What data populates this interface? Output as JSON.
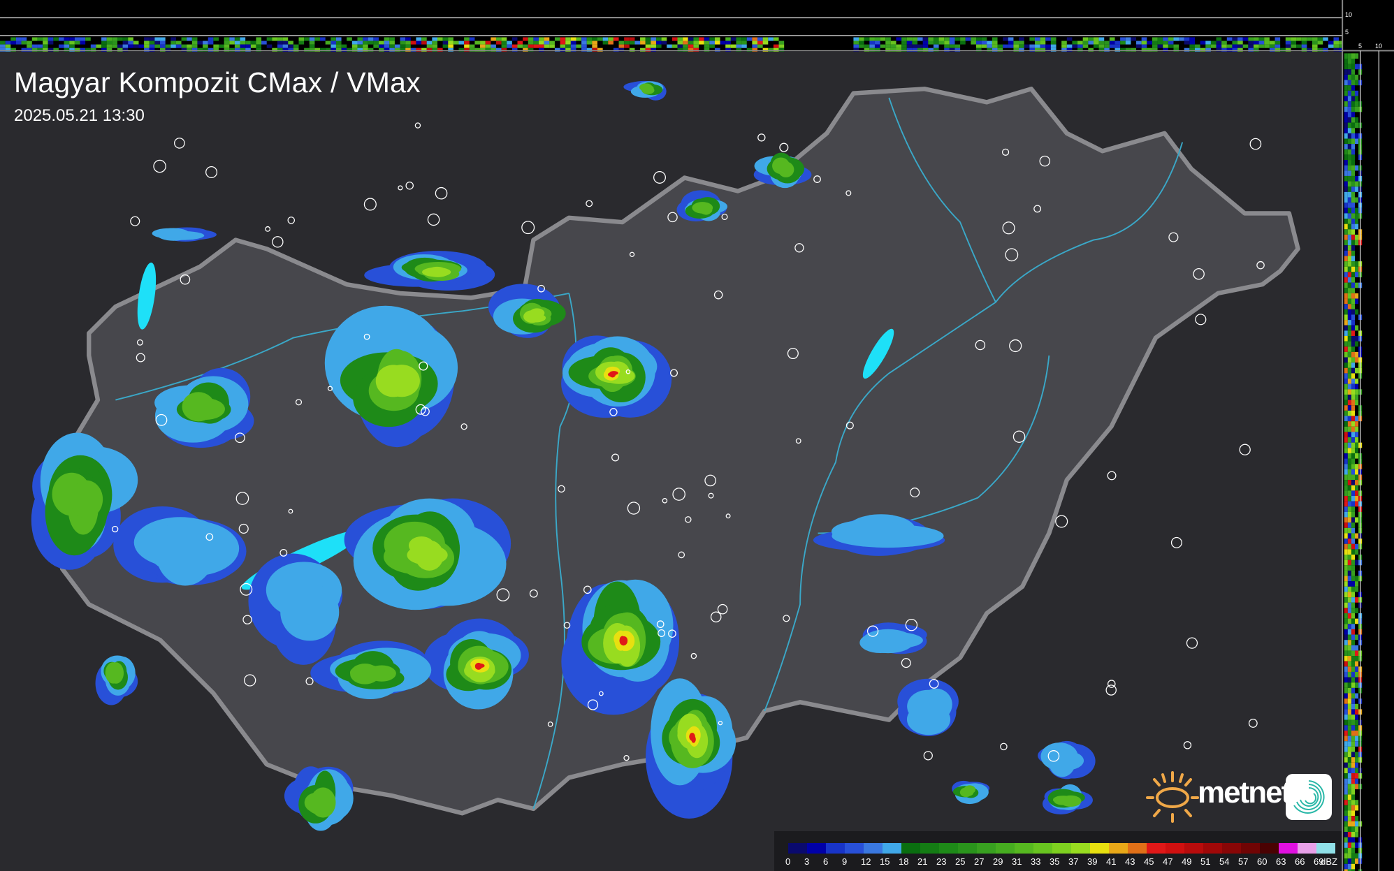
{
  "header": {
    "title": "Magyar Kompozit CMax / VMax",
    "datetime": "2025.05.21 13:30"
  },
  "profile_axes": {
    "top_ticks": [
      "10",
      "5"
    ],
    "side_ticks": [
      "5",
      "10"
    ]
  },
  "legend": {
    "unit": "dBZ",
    "items": [
      {
        "label": "0",
        "color": "#0a0a6e"
      },
      {
        "label": "3",
        "color": "#0000a8"
      },
      {
        "label": "6",
        "color": "#1834c8"
      },
      {
        "label": "9",
        "color": "#2850d8"
      },
      {
        "label": "12",
        "color": "#3a78e0"
      },
      {
        "label": "15",
        "color": "#40a8e8"
      },
      {
        "label": "18",
        "color": "#0a6e10"
      },
      {
        "label": "21",
        "color": "#147c14"
      },
      {
        "label": "23",
        "color": "#1e8a18"
      },
      {
        "label": "25",
        "color": "#2a941c"
      },
      {
        "label": "27",
        "color": "#38a020"
      },
      {
        "label": "29",
        "color": "#46ac20"
      },
      {
        "label": "31",
        "color": "#56b820"
      },
      {
        "label": "33",
        "color": "#68c420"
      },
      {
        "label": "35",
        "color": "#7ed020"
      },
      {
        "label": "37",
        "color": "#98dc20"
      },
      {
        "label": "39",
        "color": "#e8e010"
      },
      {
        "label": "41",
        "color": "#e8a818"
      },
      {
        "label": "43",
        "color": "#e07018"
      },
      {
        "label": "45",
        "color": "#e01818"
      },
      {
        "label": "47",
        "color": "#d01010"
      },
      {
        "label": "49",
        "color": "#b80c0c"
      },
      {
        "label": "51",
        "color": "#a00808"
      },
      {
        "label": "54",
        "color": "#880606"
      },
      {
        "label": "57",
        "color": "#700404"
      },
      {
        "label": "60",
        "color": "#4a0202"
      },
      {
        "label": "63",
        "color": "#e010e0"
      },
      {
        "label": "66",
        "color": "#e8a0e8"
      },
      {
        "label": "69",
        "color": "#90e0e8"
      }
    ]
  },
  "branding": {
    "logo_text": "metnet",
    "logo_sun_color": "#f0a848"
  },
  "colors": {
    "background": "#2a2a2e",
    "country_fill": "#47474c",
    "border": "#8a8a8e",
    "lakes": "#1ee0f8",
    "rivers": "#3aa8c8"
  }
}
